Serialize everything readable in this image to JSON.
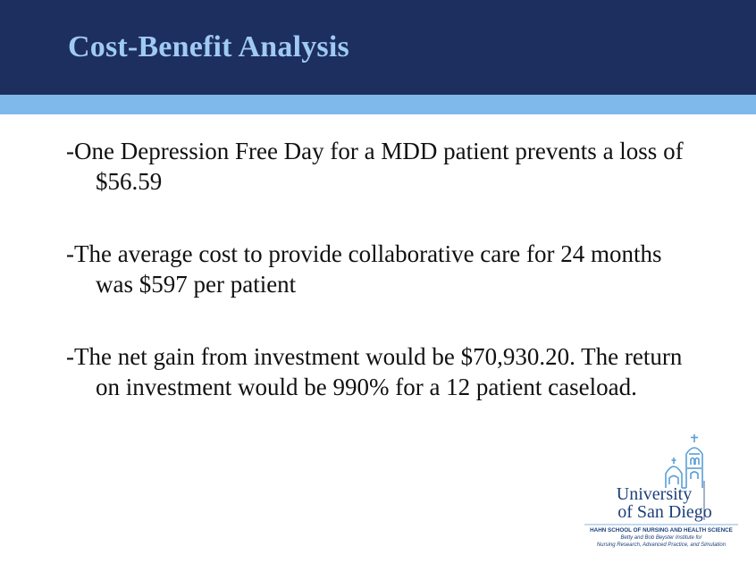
{
  "slide": {
    "title": "Cost-Benefit Analysis",
    "bullets": [
      "-One Depression Free Day for a MDD patient prevents a loss of $56.59",
      "-The average cost to provide collaborative care for 24 months was $597  per patient",
      "-The net gain from investment would be $70,930.20. The return on investment would be 990%  for a 12 patient caseload."
    ]
  },
  "logo": {
    "university_line1": "University",
    "university_line2": "of San Diego",
    "school": "HAHN SCHOOL OF NURSING AND HEALTH SCIENCE",
    "sub_line1": "Betty and Bob Beyster Institute for",
    "sub_line2": "Nursing Research, Advanced Practice, and Simulation",
    "icon": "mission-church-icon"
  },
  "colors": {
    "title_bar": "#1d2f5e",
    "title_text": "#9fcaf3",
    "accent_bar": "#7fb9ec",
    "body_text": "#111111",
    "logo": "#1d3f7a",
    "logo_icon": "#5a9fd6"
  }
}
